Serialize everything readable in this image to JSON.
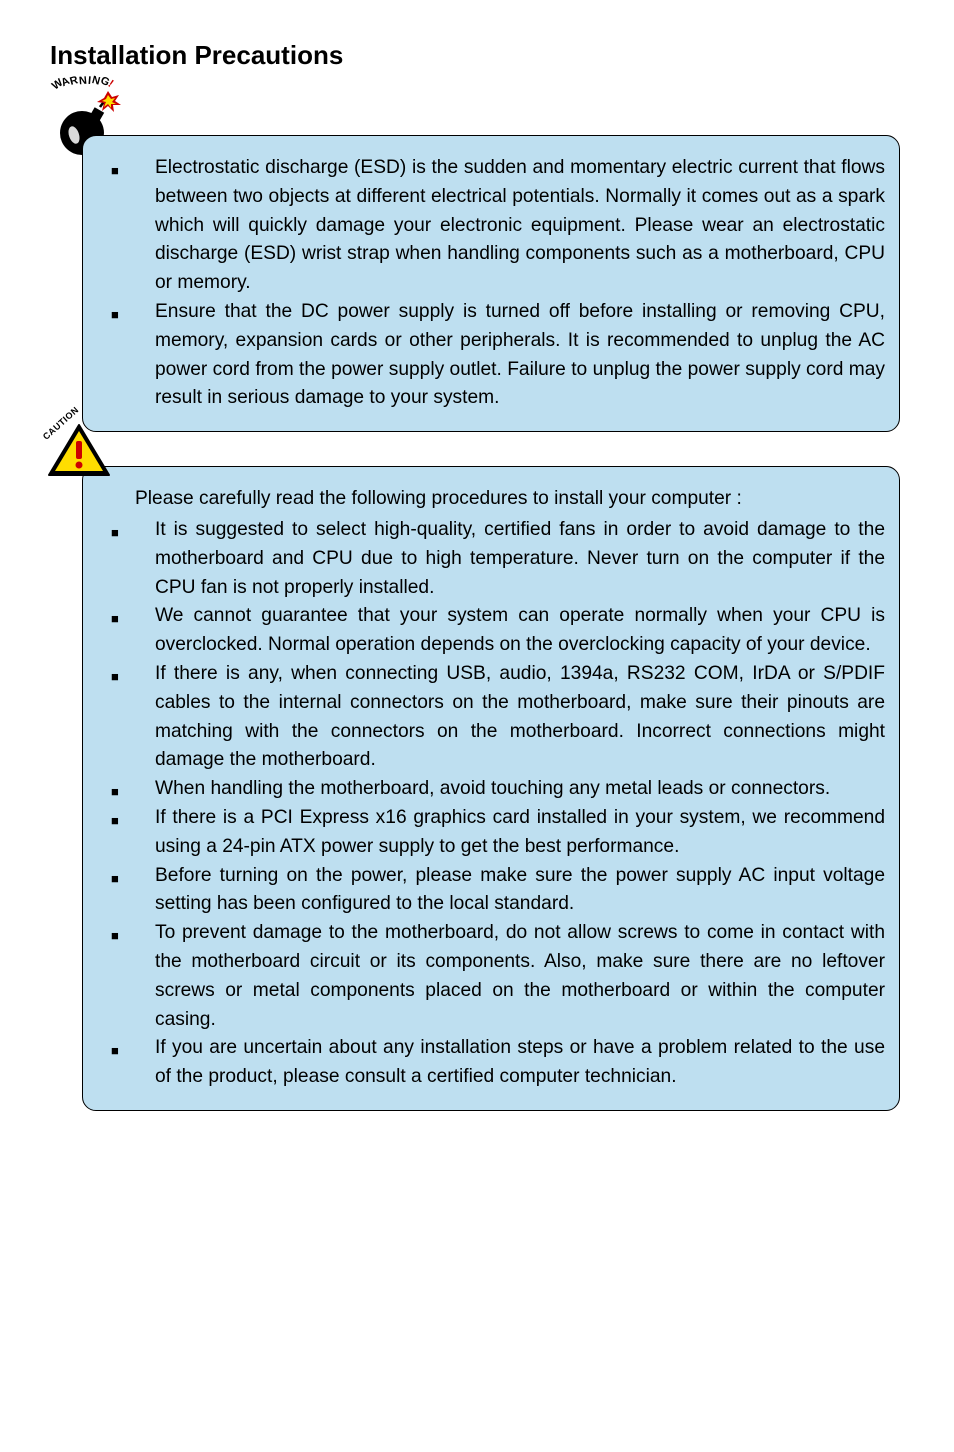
{
  "title": "Installation Precautions",
  "warningLabel": "WARNING!",
  "cautionLabel": "CAUTION",
  "colors": {
    "boxBg": "#bedff0",
    "bombBody": "#000000",
    "bombHighlight": "#ffffff",
    "sparkOuter": "#cc0000",
    "sparkInner": "#ffdd00",
    "triOuter": "#000000",
    "triInner": "#ffdd00",
    "exMark": "#cc0000"
  },
  "warningBullets": [
    "Electrostatic discharge (ESD) is the sudden and momentary electric current that flows between two objects at different electrical potentials. Normally it comes out as a spark which will quickly damage your electronic equipment. Please wear an electrostatic discharge (ESD) wrist strap when handling components such as a motherboard, CPU or memory.",
    "Ensure that the DC power supply is turned off before installing or removing CPU, memory, expansion cards or other peripherals. It is recommended to unplug the AC power cord from the power supply outlet. Failure to unplug the power supply cord may result in serious damage to your system."
  ],
  "cautionIntro": "Please carefully read the following procedures to install your computer :",
  "cautionBullets": [
    "It is suggested to select high-quality, certified fans in order to avoid damage to the motherboard and CPU due to high temperature. Never turn on the computer if the CPU fan is not properly installed.",
    "We cannot guarantee that your system can operate normally when your CPU is overclocked. Normal operation depends on the overclocking capacity of your device.",
    "If there is any, when connecting USB, audio, 1394a, RS232 COM, IrDA or S/PDIF cables to the internal connectors on the motherboard, make sure their pinouts are matching with the connectors on the motherboard. Incorrect connections might damage the motherboard.",
    "When handling the motherboard, avoid touching any metal leads or  connectors.",
    "If there is a PCI Express x16 graphics card installed in your system, we recommend using a 24-pin ATX power supply to get the best performance.",
    "Before turning on the power, please make sure the power supply AC input voltage setting has been configured to the local standard.",
    "To prevent damage to the motherboard, do not allow screws to come in contact with the motherboard circuit or its components. Also, make sure there are no leftover screws or metal components placed on the motherboard or within the computer casing.",
    "If you are uncertain about any installation steps or have a problem related to the use of the product, please consult a certified computer technician."
  ]
}
